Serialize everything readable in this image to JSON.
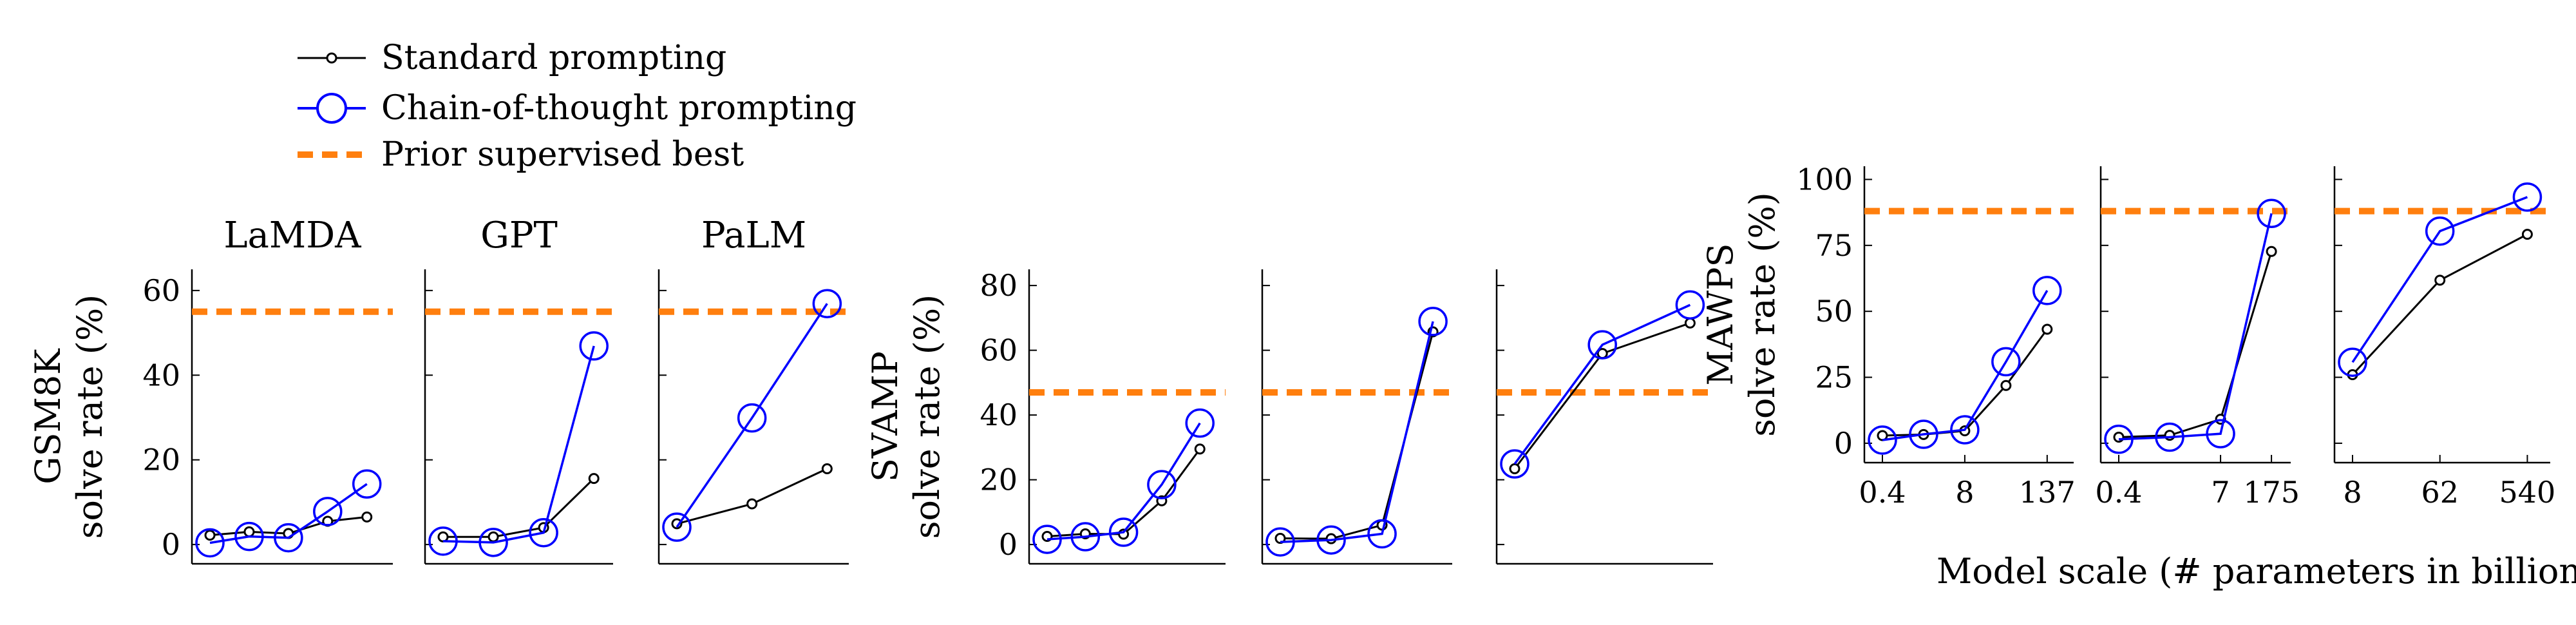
{
  "legend": [
    {
      "label": "Standard prompting",
      "color": "#000000",
      "marker": "small-circle"
    },
    {
      "label": "Chain-of-thought prompting",
      "color": "#0000ff",
      "marker": "large-circle"
    },
    {
      "label": "Prior supervised best",
      "color": "#ff7f0e",
      "style": "dashed"
    }
  ],
  "xlabel": "Model scale (# parameters in billions)",
  "colors": {
    "standard": "#000000",
    "cot": "#0000ff",
    "prior": "#ff7f0e"
  },
  "chart_data": [
    {
      "type": "line",
      "dataset": "GSM8K",
      "model": "LaMDA",
      "title": "LaMDA",
      "ylabel": [
        "GSM8K",
        "solve rate (%)"
      ],
      "ylim": [
        0,
        65
      ],
      "yticks": [
        0,
        20,
        40,
        60
      ],
      "x": [
        1,
        2,
        3,
        4,
        5
      ],
      "xticks": [],
      "prior_best": 55,
      "series": [
        {
          "name": "Standard prompting",
          "values": [
            2.2,
            3.0,
            2.6,
            5.5,
            6.5
          ]
        },
        {
          "name": "Chain-of-thought prompting",
          "values": [
            0.4,
            1.9,
            1.6,
            7.8,
            14.3
          ]
        }
      ]
    },
    {
      "type": "line",
      "dataset": "GSM8K",
      "model": "GPT",
      "title": "GPT",
      "ylim": [
        0,
        65
      ],
      "yticks": [
        0,
        20,
        40,
        60
      ],
      "x": [
        1,
        2,
        3,
        4
      ],
      "xticks": [],
      "prior_best": 55,
      "series": [
        {
          "name": "Standard prompting",
          "values": [
            1.8,
            1.8,
            4.0,
            15.6
          ]
        },
        {
          "name": "Chain-of-thought prompting",
          "values": [
            0.8,
            0.5,
            2.8,
            46.9
          ]
        }
      ]
    },
    {
      "type": "line",
      "dataset": "GSM8K",
      "model": "PaLM",
      "title": "PaLM",
      "ylim": [
        0,
        65
      ],
      "yticks": [
        0,
        20,
        40,
        60
      ],
      "x": [
        1,
        2,
        3
      ],
      "xticks": [],
      "prior_best": 55,
      "series": [
        {
          "name": "Standard prompting",
          "values": [
            4.9,
            9.6,
            17.9
          ]
        },
        {
          "name": "Chain-of-thought prompting",
          "values": [
            4.1,
            29.9,
            56.9
          ]
        }
      ]
    },
    {
      "type": "line",
      "dataset": "SVAMP",
      "model": "LaMDA",
      "ylabel": [
        "SVAMP",
        "solve rate (%)"
      ],
      "ylim": [
        0,
        85
      ],
      "yticks": [
        0,
        20,
        40,
        60,
        80
      ],
      "x": [
        1,
        2,
        3,
        4,
        5
      ],
      "xticks": [],
      "prior_best": 47,
      "series": [
        {
          "name": "Standard prompting",
          "values": [
            2.5,
            3.3,
            3.2,
            13.5,
            29.5
          ]
        },
        {
          "name": "Chain-of-thought prompting",
          "values": [
            1.6,
            2.4,
            3.8,
            18.5,
            37.5
          ]
        }
      ]
    },
    {
      "type": "line",
      "dataset": "SVAMP",
      "model": "GPT",
      "ylim": [
        0,
        85
      ],
      "yticks": [
        0,
        20,
        40,
        60,
        80
      ],
      "x": [
        1,
        2,
        3,
        4
      ],
      "xticks": [],
      "prior_best": 47,
      "series": [
        {
          "name": "Standard prompting",
          "values": [
            1.9,
            1.8,
            6.0,
            65.7
          ]
        },
        {
          "name": "Chain-of-thought prompting",
          "values": [
            0.8,
            1.4,
            3.3,
            68.9
          ]
        }
      ]
    },
    {
      "type": "line",
      "dataset": "SVAMP",
      "model": "PaLM",
      "ylim": [
        0,
        85
      ],
      "yticks": [
        0,
        20,
        40,
        60,
        80
      ],
      "x": [
        1,
        2,
        3
      ],
      "xticks": [],
      "prior_best": 47,
      "series": [
        {
          "name": "Standard prompting",
          "values": [
            23.4,
            59.0,
            68.4
          ]
        },
        {
          "name": "Chain-of-thought prompting",
          "values": [
            24.9,
            61.7,
            74.0
          ]
        }
      ]
    },
    {
      "type": "line",
      "dataset": "MAWPS",
      "model": "LaMDA",
      "ylabel": [
        "MAWPS",
        "solve rate (%)"
      ],
      "ylim": [
        0,
        105
      ],
      "yticks": [
        0,
        25,
        50,
        75,
        100
      ],
      "x": [
        1,
        2,
        3,
        4,
        5
      ],
      "xticks": [
        "0.4",
        "8",
        "137"
      ],
      "xtick_positions": [
        1,
        3,
        5
      ],
      "prior_best": 88,
      "series": [
        {
          "name": "Standard prompting",
          "values": [
            2.9,
            3.3,
            4.7,
            21.9,
            43.2
          ]
        },
        {
          "name": "Chain-of-thought prompting",
          "values": [
            1.2,
            3.4,
            5.1,
            30.9,
            57.9
          ]
        }
      ]
    },
    {
      "type": "line",
      "dataset": "MAWPS",
      "model": "GPT",
      "ylim": [
        0,
        105
      ],
      "yticks": [
        0,
        25,
        50,
        75,
        100
      ],
      "x": [
        1,
        2,
        3,
        4
      ],
      "xticks": [
        "0.4",
        "7",
        "175"
      ],
      "xtick_positions": [
        1,
        3,
        4
      ],
      "prior_best": 88,
      "series": [
        {
          "name": "Standard prompting",
          "values": [
            2.3,
            3.0,
            9.1,
            72.7
          ]
        },
        {
          "name": "Chain-of-thought prompting",
          "values": [
            1.5,
            2.3,
            3.6,
            87.1
          ]
        }
      ]
    },
    {
      "type": "line",
      "dataset": "MAWPS",
      "model": "PaLM",
      "ylim": [
        0,
        105
      ],
      "yticks": [
        0,
        25,
        50,
        75,
        100
      ],
      "x": [
        1,
        2,
        3
      ],
      "xticks": [
        "8",
        "62",
        "540"
      ],
      "xtick_positions": [
        1,
        2,
        3
      ],
      "prior_best": 88,
      "series": [
        {
          "name": "Standard prompting",
          "values": [
            26.0,
            61.8,
            79.2
          ]
        },
        {
          "name": "Chain-of-thought prompting",
          "values": [
            30.7,
            80.4,
            93.3
          ]
        }
      ]
    }
  ]
}
